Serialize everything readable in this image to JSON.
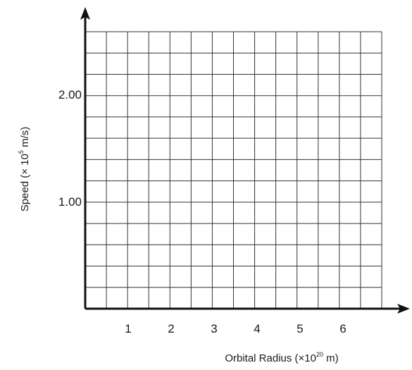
{
  "chart_data": {
    "type": "line",
    "title": "",
    "xlabel": "Orbital Radius (×10",
    "xlabel_exp": "20",
    "xlabel_suffix": " m)",
    "ylabel": "Speed (× 10",
    "ylabel_exp": "5",
    "ylabel_suffix": " m/s)",
    "x_ticks": [
      "1",
      "2",
      "3",
      "4",
      "5",
      "6"
    ],
    "x_tick_values": [
      1,
      2,
      3,
      4,
      5,
      6
    ],
    "y_ticks": [
      "1.00",
      "2.00"
    ],
    "y_tick_values": [
      1.0,
      2.0
    ],
    "xlim": [
      0,
      6.8
    ],
    "ylim": [
      0,
      2.6
    ],
    "grid": true,
    "series": [],
    "colors": {
      "grid": "#333333",
      "axis": "#111111"
    }
  }
}
